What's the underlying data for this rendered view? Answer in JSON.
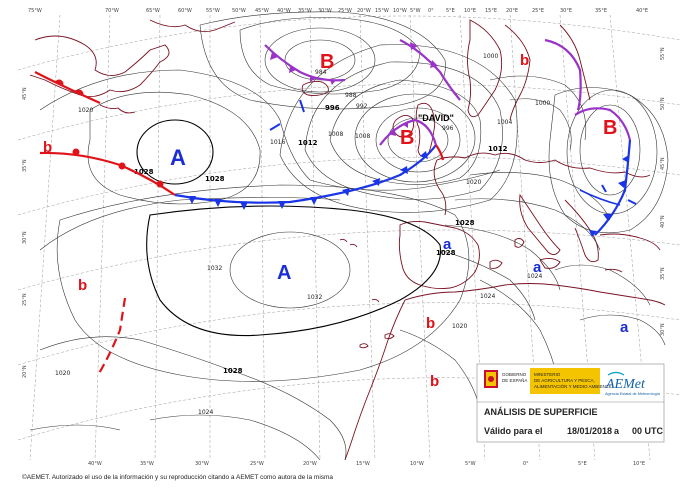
{
  "map": {
    "top_longitudes": [
      "75°W",
      "70°W",
      "65°W",
      "60°W",
      "55°W",
      "50°W",
      "45°W",
      "40°W",
      "35°W",
      "30°W",
      "25°W",
      "20°W",
      "15°W",
      "10°W",
      "5°W",
      "0°",
      "5°E",
      "10°E",
      "15°E",
      "20°E",
      "25°E",
      "30°E",
      "35°E",
      "40°E"
    ],
    "bottom_longitudes": [
      "40°W",
      "35°W",
      "30°W",
      "25°W",
      "20°W",
      "15°W",
      "10°W",
      "5°W",
      "0°",
      "5°E",
      "10°E"
    ],
    "left_latitudes": [
      "45°N",
      "35°N",
      "30°N",
      "25°N",
      "20°N"
    ],
    "right_latitudes": [
      "55°N",
      "50°N",
      "45°N",
      "40°N",
      "35°N",
      "30°N",
      "25°N"
    ],
    "isobar_labels": {
      "l984": "984",
      "l988": "988",
      "l992": "992",
      "l996a": "996",
      "l996b": "996",
      "l1000a": "1000",
      "l1000b": "1000",
      "l1004": "1004",
      "l1008a": "1008",
      "l1008b": "1008",
      "l1012a": "1012",
      "l1012b": "1012",
      "l1016": "1016",
      "l1020a": "1020",
      "l1020b": "1020",
      "l1020c": "1020",
      "l1020d": "1020",
      "l1024a": "1024",
      "l1024b": "1024",
      "l1024c": "1024",
      "l1028a": "1028",
      "l1028b": "1028",
      "l1028c": "1028",
      "l1028d": "1028",
      "l1028e": "1028",
      "l1032a": "1032",
      "l1032b": "1032"
    },
    "storm_name": "\"DAVID\"",
    "pressure_systems": {
      "high_symbol": "A",
      "low_symbol": "B",
      "relative_high_symbol": "a",
      "relative_low_symbol": "b"
    }
  },
  "colors": {
    "high": "#1a2ed6",
    "low": "#e0121a",
    "cold_front": "#1a35e6",
    "warm_front": "#e0121a",
    "occluded_front": "#9a33c8",
    "coastline": "#7a1020",
    "isobar": "#333333",
    "graticule": "#9a9a9a",
    "info_panel_bg": "#ffffff"
  },
  "info_panel": {
    "title": "ANÁLISIS DE SUPERFICIE",
    "valid_label": "Válido para el",
    "date": "18/01/2018",
    "at": "a",
    "time": "00 UTC",
    "gov_line1": "GOBIERNO",
    "gov_line2": "DE ESPAÑA",
    "ministry_line1": "MINISTERIO",
    "ministry_line2": "DE AGRICULTURA Y PESCA,",
    "ministry_line3": "ALIMENTACIÓN Y MEDIO AMBIENTE",
    "aemet_logo": "AEMet",
    "aemet_tagline": "Agencia Estatal de Meteorología"
  },
  "footer": {
    "copyright": "©AEMET. Autorizado el uso de la información y su reproducción citando a AEMET como autora de la misma"
  }
}
